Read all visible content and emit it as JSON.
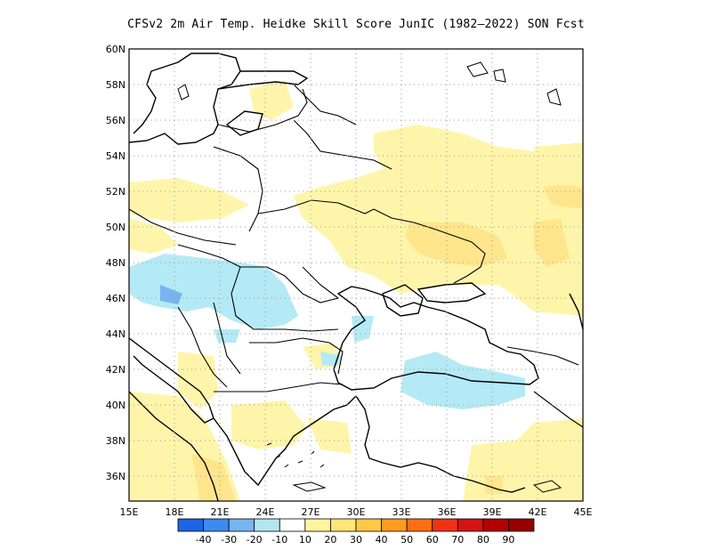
{
  "title": "CFSv2  2m Air Temp. Heidke Skill Score JunIC (1982–2022) SON Fcst",
  "map": {
    "lon_ticks": [
      "15E",
      "18E",
      "21E",
      "24E",
      "27E",
      "30E",
      "33E",
      "36E",
      "39E",
      "42E",
      "45E"
    ],
    "lat_ticks": [
      "60N",
      "58N",
      "56N",
      "54N",
      "52N",
      "50N",
      "48N",
      "46N",
      "44N",
      "42N",
      "40N",
      "38N",
      "36N"
    ],
    "region": "Eastern Europe / Black Sea",
    "grid": "dotted"
  },
  "colorbar": {
    "labels": [
      "-40",
      "-30",
      "-20",
      "-10",
      "10",
      "20",
      "30",
      "40",
      "50",
      "60",
      "70",
      "80",
      "90"
    ],
    "colors": [
      "#1e64e6",
      "#3c8cf0",
      "#78b4f0",
      "#b4e6f0",
      "#ffffff",
      "#fff5a0",
      "#ffe678",
      "#ffc846",
      "#ff9b1e",
      "#ff6e14",
      "#f03214",
      "#d21414",
      "#b40000",
      "#960000"
    ]
  },
  "legend_colors": {
    "light_blue": "#b4eaf5",
    "mid_blue": "#78b4f0",
    "yellow_light": "#fff5aa",
    "yellow_mid": "#ffe68c"
  }
}
